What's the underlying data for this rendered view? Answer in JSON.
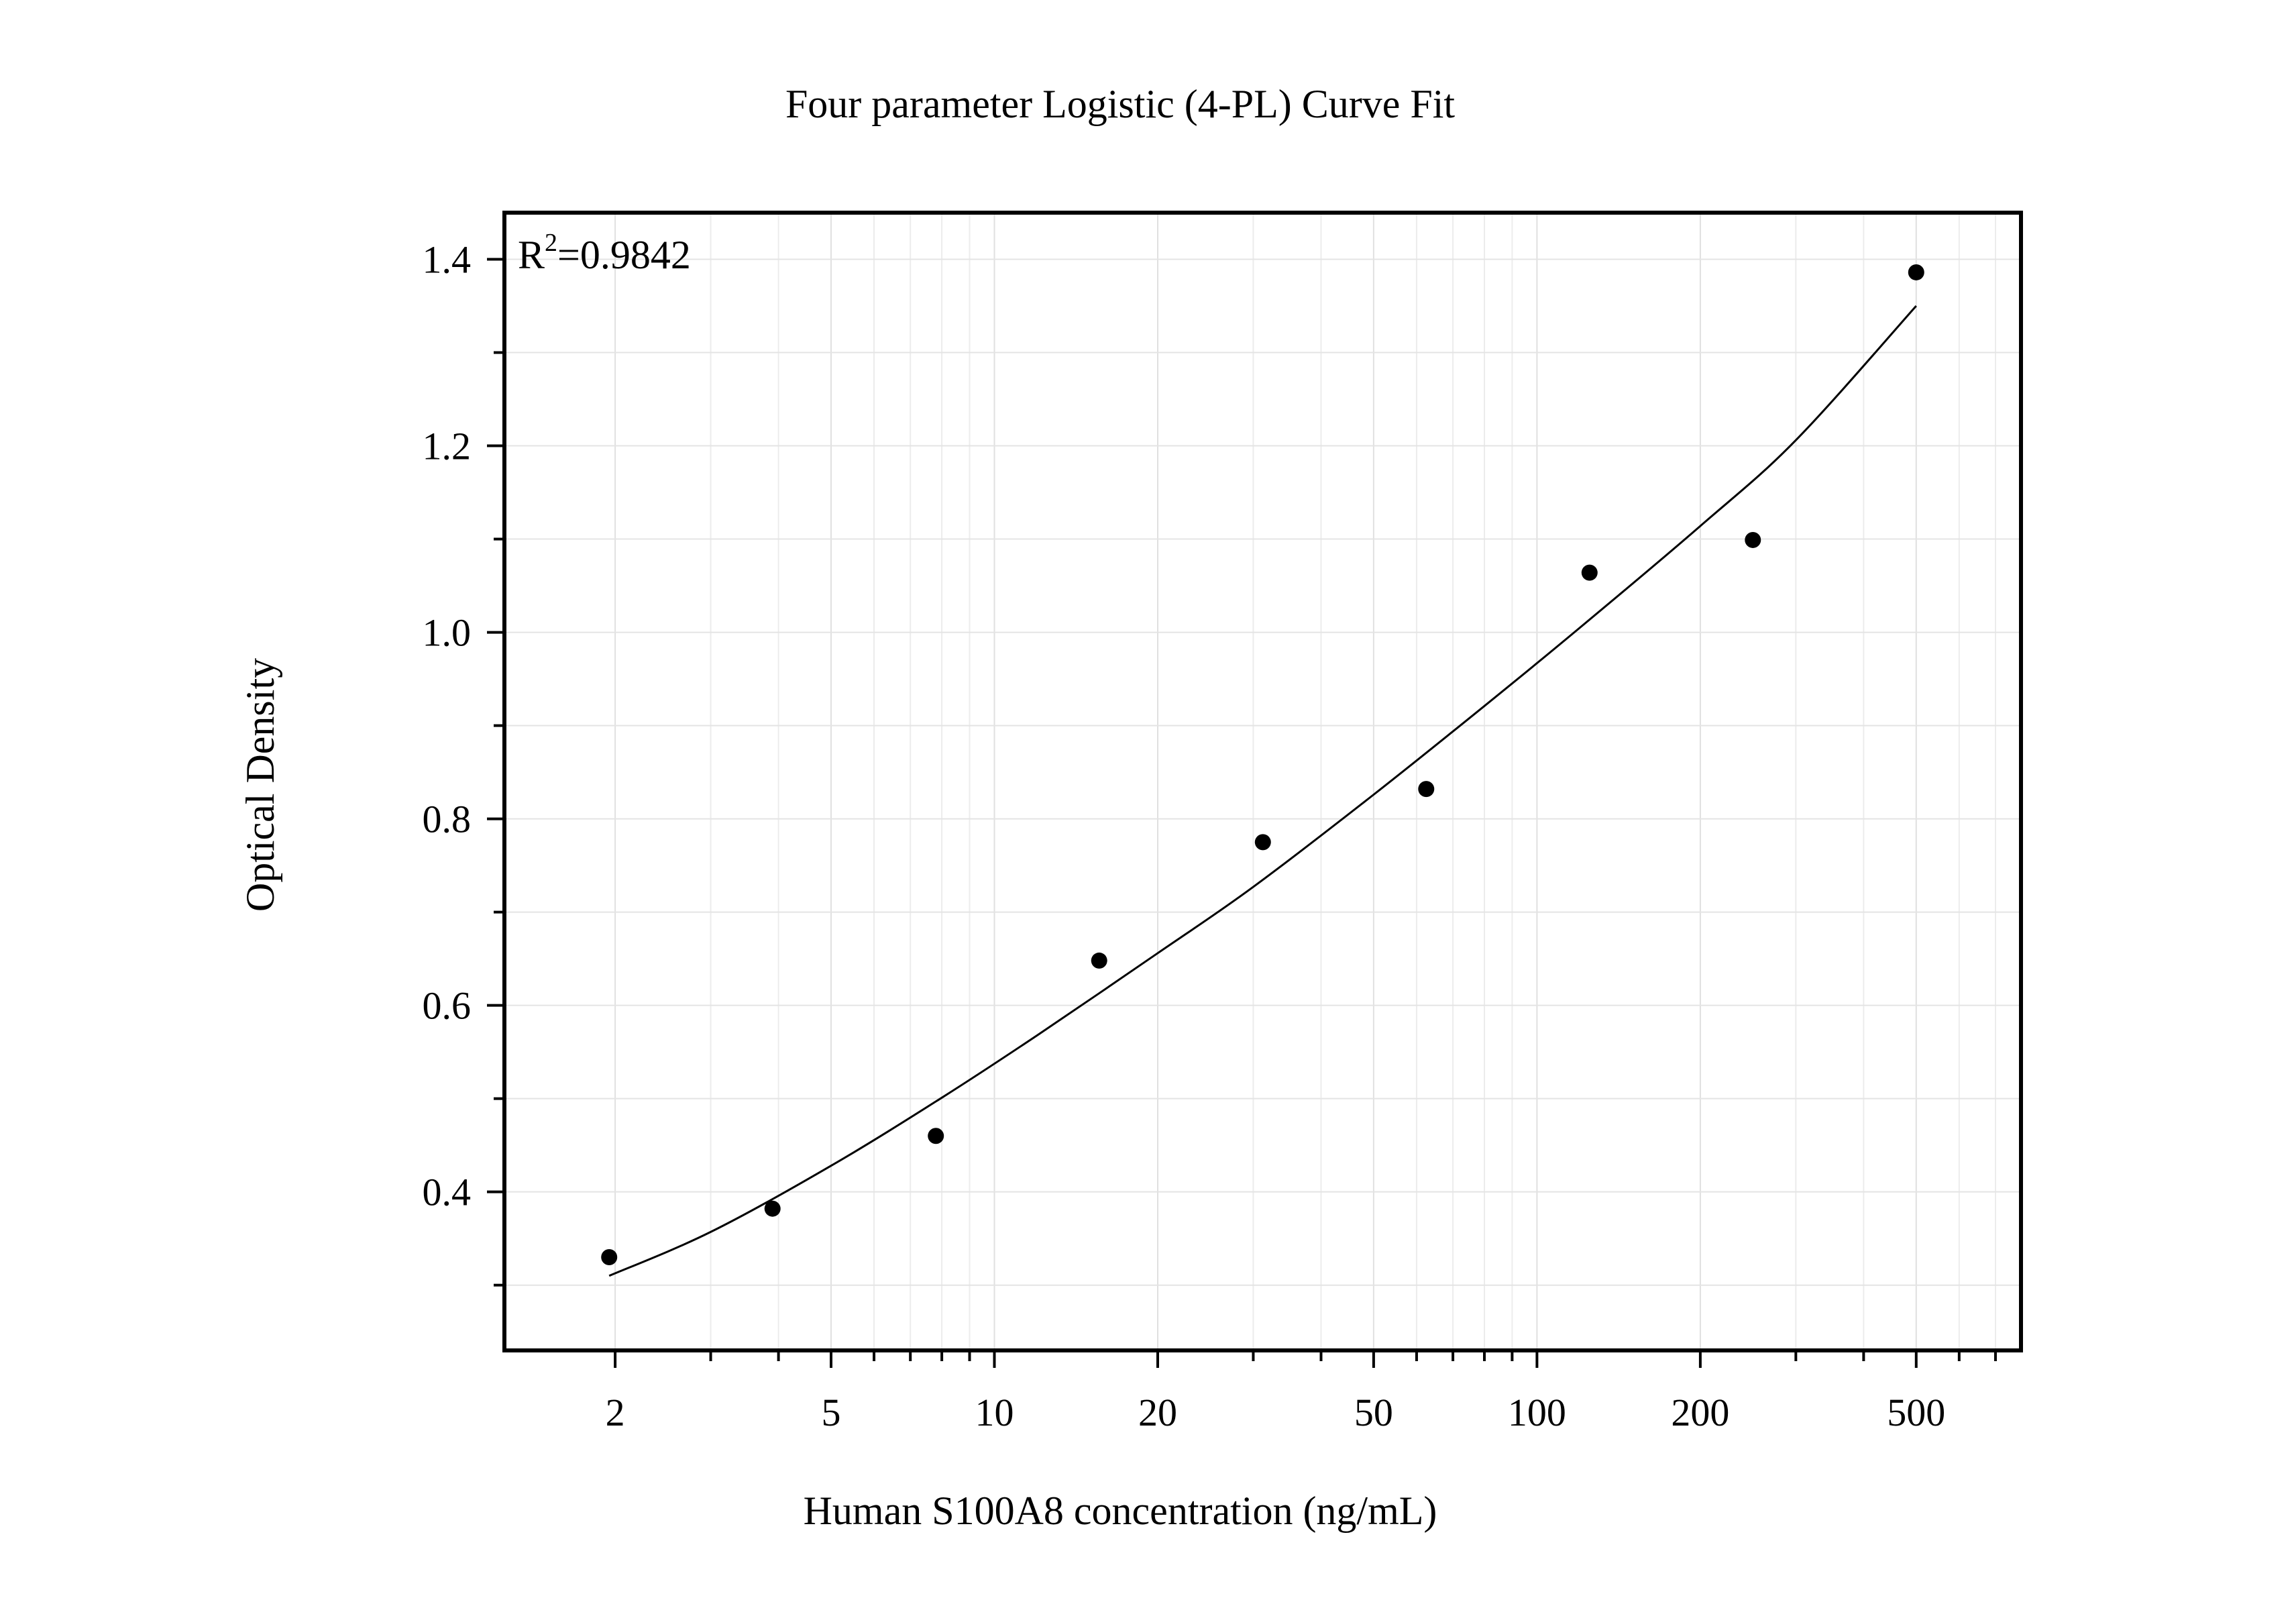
{
  "chart_data": {
    "type": "scatter",
    "title": "Four parameter Logistic (4-PL) Curve Fit",
    "xlabel": "Human S100A8 concentration (ng/mL)",
    "ylabel": "Optical Density",
    "x_scale": "log",
    "xlim": [
      1.25,
      780
    ],
    "ylim": [
      0.23,
      1.45
    ],
    "x_ticks": [
      2,
      5,
      10,
      20,
      50,
      100,
      200,
      500
    ],
    "x_tick_labels": [
      "2",
      "5",
      "10",
      "20",
      "50",
      "100",
      "200",
      "500"
    ],
    "y_ticks": [
      0.4,
      0.6,
      0.8,
      1.0,
      1.2,
      1.4
    ],
    "y_tick_labels": [
      "0.4",
      "0.6",
      "0.8",
      "1.0",
      "1.2",
      "1.4"
    ],
    "grid": true,
    "annotation": {
      "base": "R",
      "sup": "2",
      "text": "=0.9842"
    },
    "series": [
      {
        "kind": "points",
        "color": "#000000",
        "x": [
          1.95,
          3.9,
          7.8,
          15.6,
          31.25,
          62.5,
          125,
          250,
          500
        ],
        "y": [
          0.33,
          0.382,
          0.46,
          0.648,
          0.775,
          0.832,
          1.064,
          1.099,
          1.386
        ]
      },
      {
        "kind": "fit-curve",
        "color": "#000000",
        "x": [
          1.95,
          3,
          5,
          8,
          12,
          20,
          30,
          50,
          80,
          120,
          200,
          300,
          500
        ],
        "y": [
          0.31,
          0.357,
          0.428,
          0.501,
          0.568,
          0.656,
          0.727,
          0.826,
          0.921,
          1.005,
          1.114,
          1.206,
          1.35
        ]
      }
    ]
  }
}
